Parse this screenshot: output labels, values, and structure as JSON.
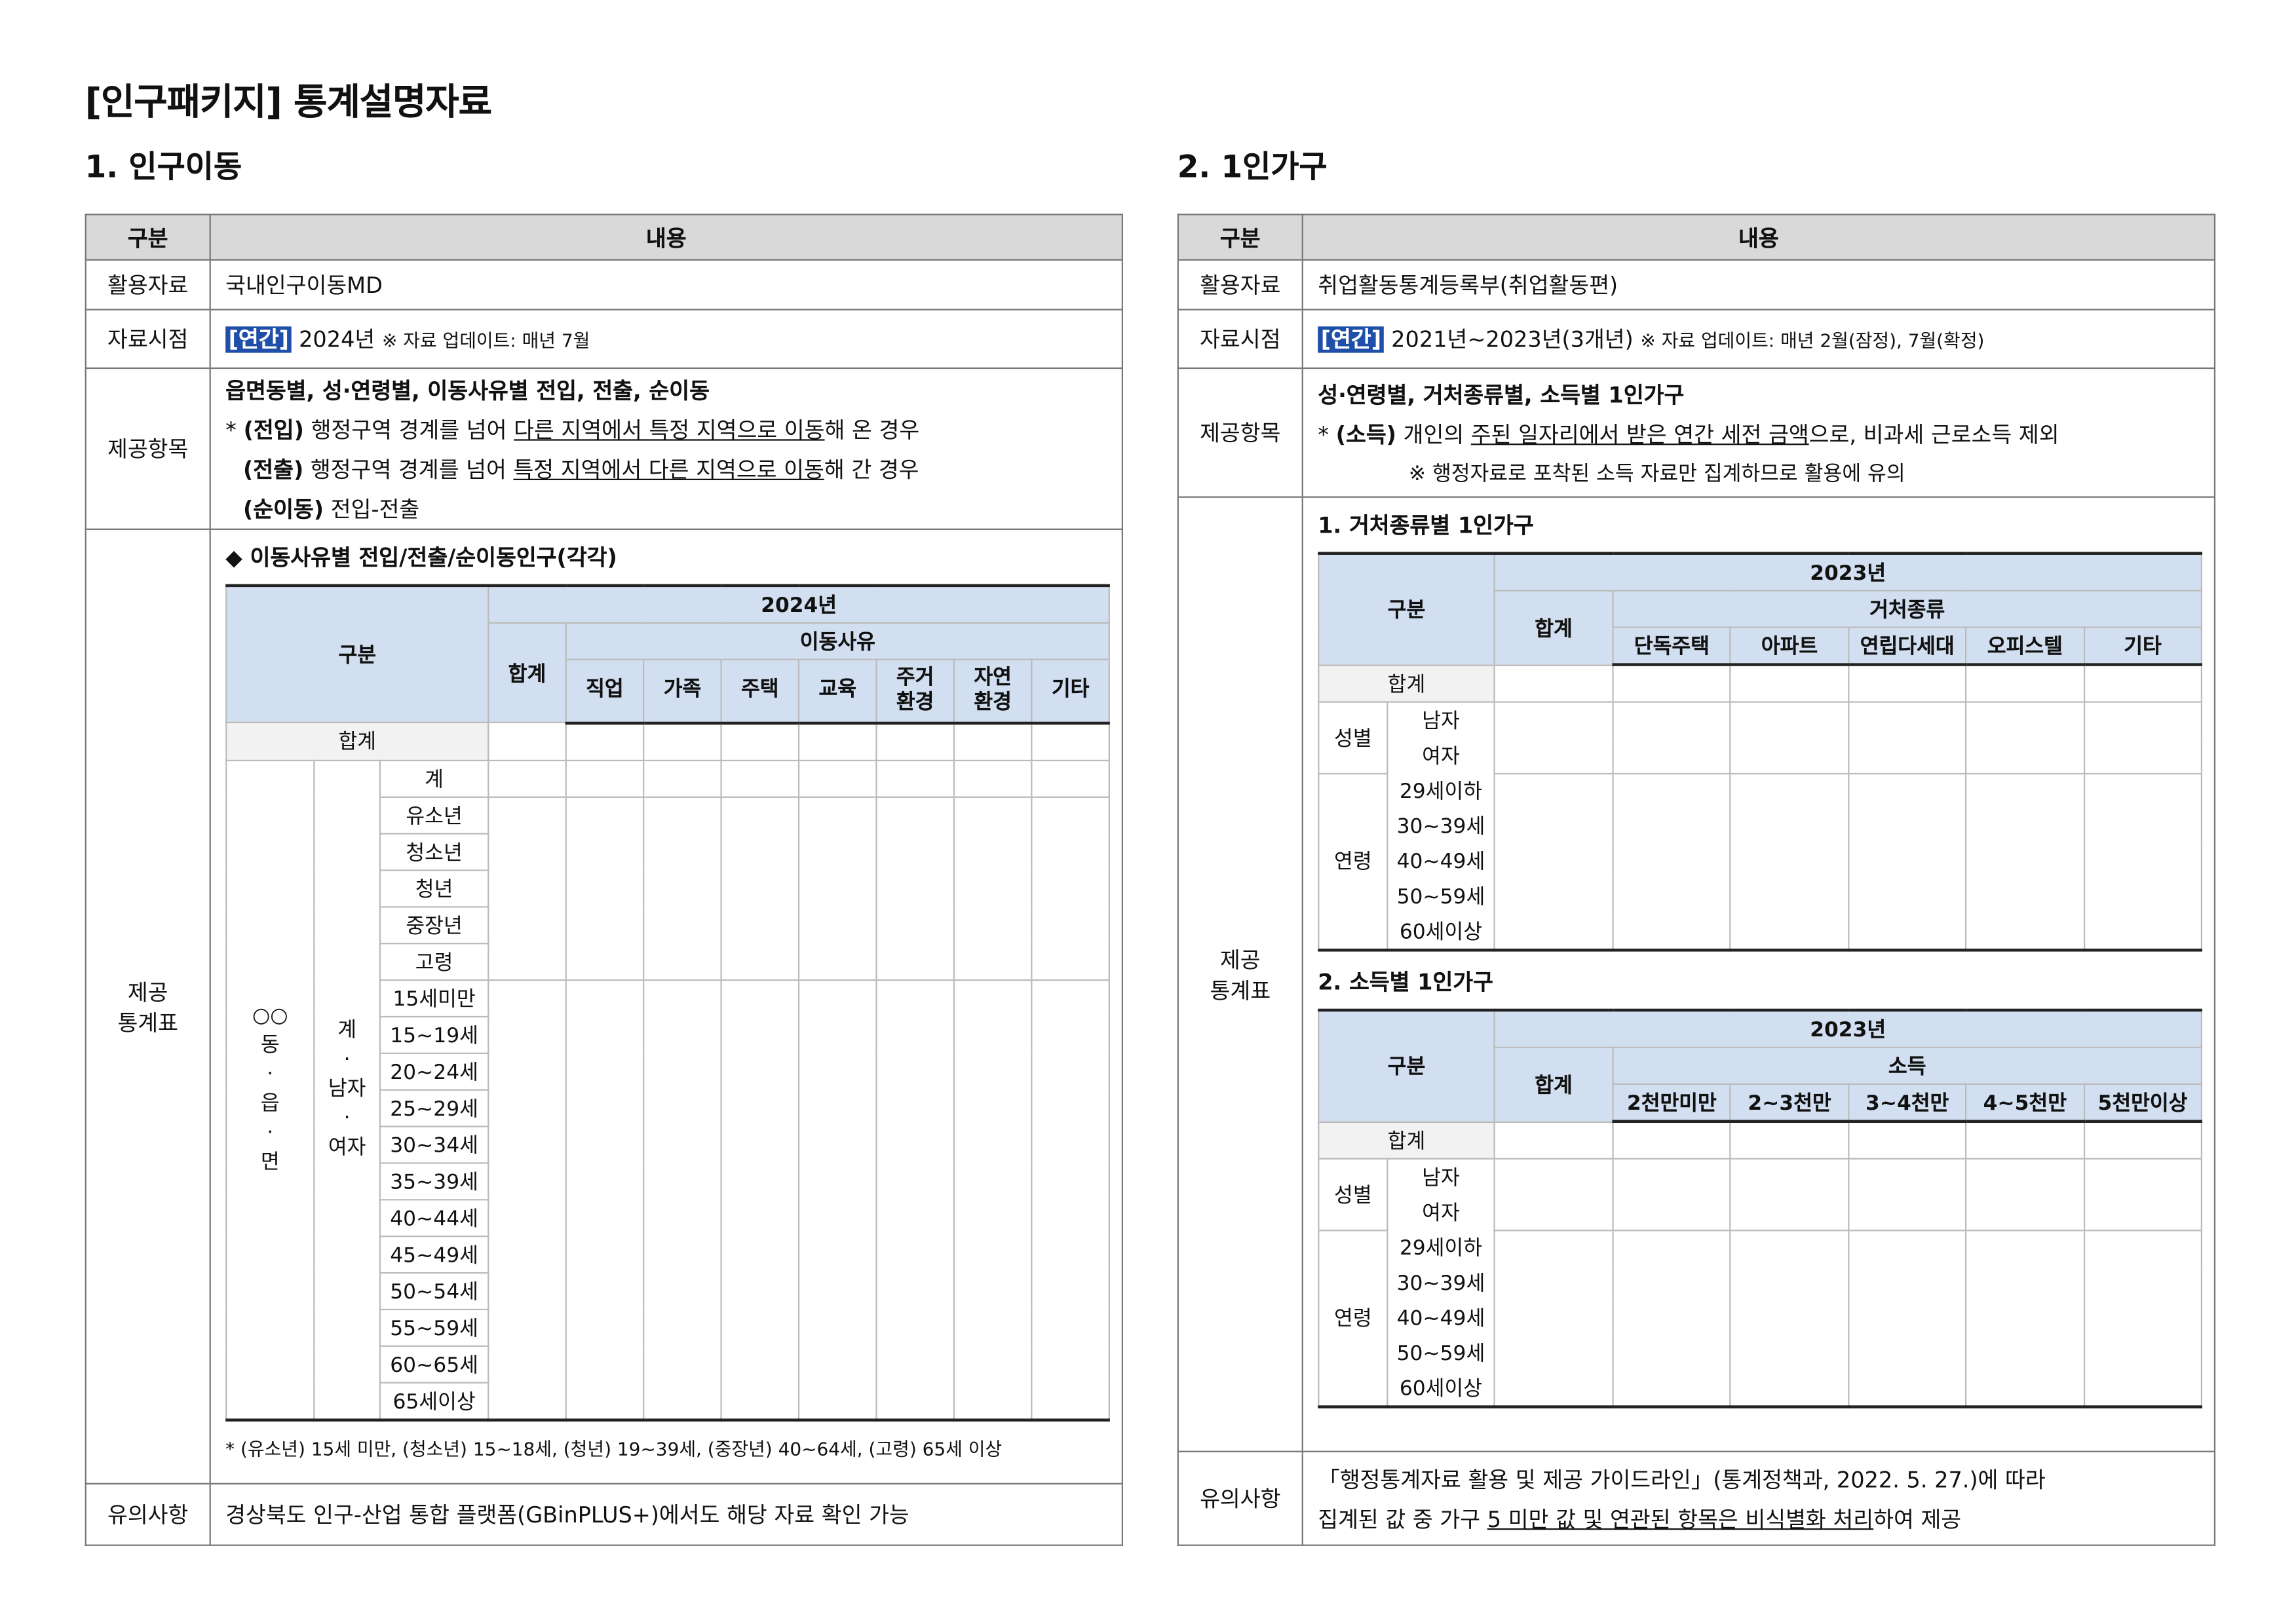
{
  "title": "[인구패키지] 통계설명자료",
  "left": {
    "heading": "1. 인구이동",
    "col_gubun": "구분",
    "col_content": "내용",
    "row_source_label": "활용자료",
    "row_source": "국내인구이동MD",
    "row_time_label": "자료시점",
    "row_time_tag": "[연간]",
    "row_time_year": "2024년",
    "row_time_note": "※ 자료 업데이트: 매년 7월",
    "row_items_label": "제공항목",
    "items_title": "읍면동별, 성·연령별, 이동사유별 전입, 전출, 순이동",
    "in_prefix": "* ",
    "in_label": "(전입)",
    "in_a": " 행정구역 경계를 넘어 ",
    "in_u": "다른 지역에서 특정 지역으로 이동",
    "in_b": "해 온 경우",
    "out_label": "(전출)",
    "out_a": " 행정구역 경계를 넘어 ",
    "out_u": "특정 지역에서 다른 지역으로 이동",
    "out_b": "해 간 경우",
    "net_label": "(순이동)",
    "net_a": " 전입-전출",
    "row_tables_label": "제공\n통계표",
    "table_title": "◆ 이동사유별 전입/전출/순이동인구(각각)",
    "t_gubun": "구분",
    "t_year": "2024년",
    "t_total": "합계",
    "t_reason": "이동사유",
    "reasons": [
      "직업",
      "가족",
      "주택",
      "교육",
      "주거\n환경",
      "자연\n환경",
      "기타"
    ],
    "total_row": "합계",
    "region": "○○\n동\n·\n읍\n·\n면",
    "sex": "계\n·\n남자\n·\n여자",
    "age_rows": [
      "계",
      "유소년",
      "청소년",
      "청년",
      "중장년",
      "고령",
      "15세미만",
      "15~19세",
      "20~24세",
      "25~29세",
      "30~34세",
      "35~39세",
      "40~44세",
      "45~49세",
      "50~54세",
      "55~59세",
      "60~65세",
      "65세이상"
    ],
    "footnote": "* (유소년) 15세 미만, (청소년) 15~18세, (청년) 19~39세, (중장년) 40~64세, (고령) 65세 이상",
    "row_note_label": "유의사항",
    "row_note": "경상북도 인구-산업 통합 플랫폼(GBinPLUS+)에서도 해당 자료 확인 가능"
  },
  "right": {
    "heading": "2. 1인가구",
    "col_gubun": "구분",
    "col_content": "내용",
    "row_source_label": "활용자료",
    "row_source": "취업활동통계등록부(취업활동편)",
    "row_time_label": "자료시점",
    "row_time_tag": "[연간]",
    "row_time_year": "2021년~2023년(3개년)",
    "row_time_note": "※ 자료 업데이트: 매년 2월(잠정), 7월(확정)",
    "row_items_label": "제공항목",
    "items_title": "성·연령별, 거처종류별, 소득별 1인가구",
    "inc_prefix": "* ",
    "inc_label": "(소득)",
    "inc_a": " 개인의 ",
    "inc_u": "주된 일자리에서 받은 연간 세전 금액",
    "inc_b": "으로, 비과세 근로소득 제외",
    "inc_note": "※ 행정자료로 포착된 소득 자료만 집계하므로 활용에 유의",
    "row_tables_label": "제공\n통계표",
    "tables": [
      {
        "title": "1. 거처종류별 1인가구",
        "year": "2023년",
        "gubun": "구분",
        "total": "합계",
        "group": "거처종류",
        "cols": [
          "단독주택",
          "아파트",
          "연립다세대",
          "오피스텔",
          "기타"
        ]
      },
      {
        "title": "2. 소득별 1인가구",
        "year": "2023년",
        "gubun": "구분",
        "total": "합계",
        "group": "소득",
        "cols": [
          "2천만미만",
          "2~3천만",
          "3~4천만",
          "4~5천만",
          "5천만이상"
        ]
      }
    ],
    "total_row": "합계",
    "sex_label": "성별",
    "sex_rows": [
      "남자",
      "여자"
    ],
    "age_label": "연령",
    "age_rows": [
      "29세이하",
      "30~39세",
      "40~49세",
      "50~59세",
      "60세이상"
    ],
    "row_note_label": "유의사항",
    "note_a": "「행정통계자료 활용 및 제공 가이드라인」(통계정책과, 2022. 5. 27.)에 따라",
    "note_b": "집계된 값 중 가구 ",
    "note_u": "5 미만 값 및 연관된 항목은 비식별화 처리",
    "note_c": "하여 제공"
  },
  "colors": {
    "header_gray": "#d9d9d9",
    "header_blue": "#d2dff0",
    "tag_blue": "#1f4fa8"
  }
}
